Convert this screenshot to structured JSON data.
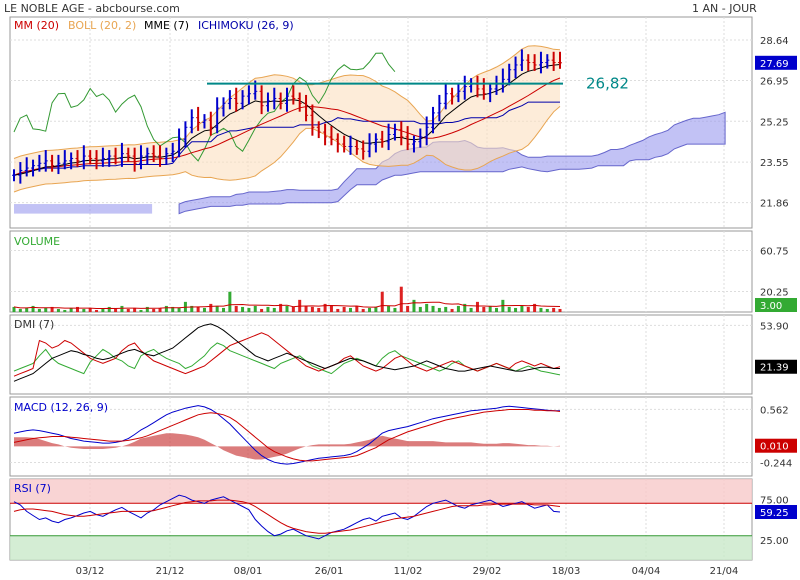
{
  "header": {
    "left_title": "LE NOBLE AGE - abcbourse.com",
    "right_title": "1 AN - JOUR"
  },
  "legend": {
    "mm": "MM (20)",
    "boll": "BOLL (20, 2)",
    "mme": "MME (7)",
    "ichimoku": "ICHIMOKU (26, 9)"
  },
  "colors": {
    "mm": "#cc0000",
    "boll": "#e8a552",
    "mme": "#000000",
    "ichimoku": "#0000aa",
    "cloud": "#9999ee",
    "volume_up": "#33aa33",
    "volume_down": "#dd2222",
    "dmi_plus": "#33aa33",
    "dmi_minus": "#cc0000",
    "adx": "#000000",
    "macd": "#0000cc",
    "signal": "#cc0000",
    "hist": "#cc4444",
    "rsi": "#0000cc",
    "rsi_ma": "#cc0000",
    "resistance": "#008888",
    "current_box": "#0000cc",
    "indicator_box": "#cc0000"
  },
  "annotation": {
    "resistance_label": "26,82",
    "resistance_value": 26.82
  },
  "x_axis": {
    "labels": [
      "03/12",
      "21/12",
      "08/01",
      "26/01",
      "11/02",
      "29/02",
      "18/03",
      "04/04",
      "21/04"
    ]
  },
  "panels": {
    "volume": {
      "title": "VOLUME",
      "ticks": [
        "60.75",
        "20.25"
      ],
      "current": "3.00"
    },
    "dmi": {
      "title": "DMI (7)",
      "ticks": [
        "53.90"
      ],
      "current": "21.39"
    },
    "macd": {
      "title": "MACD (12, 26, 9)",
      "ticks": [
        "0.562",
        "-0.244"
      ],
      "current": "0.010"
    },
    "rsi": {
      "title": "RSI (7)",
      "ticks": [
        "75.00",
        "25.00"
      ],
      "current": "59.25"
    }
  },
  "chart_data": {
    "type": "line",
    "price_axis": {
      "ticks": [
        "28.64",
        "26.95",
        "25.25",
        "23.55",
        "21.86"
      ],
      "tick_values": [
        28.64,
        26.95,
        25.25,
        23.55,
        21.86
      ],
      "current": "27.69",
      "current_value": 27.69
    },
    "closes": [
      23.0,
      23.2,
      23.3,
      23.4,
      23.5,
      23.6,
      23.4,
      23.5,
      23.6,
      23.7,
      23.6,
      23.8,
      23.7,
      23.6,
      23.7,
      23.8,
      23.7,
      23.9,
      23.8,
      23.5,
      23.8,
      23.9,
      23.8,
      23.7,
      23.9,
      24.0,
      24.5,
      25.0,
      25.4,
      25.2,
      25.3,
      25.0,
      25.8,
      26.0,
      26.2,
      26.0,
      26.3,
      26.4,
      26.5,
      25.9,
      26.1,
      26.2,
      26.0,
      26.3,
      26.2,
      26.0,
      25.5,
      25.0,
      24.8,
      24.6,
      24.5,
      24.3,
      24.2,
      24.2,
      24.1,
      24.0,
      24.3,
      24.5,
      24.4,
      24.7,
      24.9,
      24.6,
      24.3,
      24.4,
      24.6,
      25.0,
      25.6,
      26.0,
      26.4,
      26.3,
      26.5,
      26.7,
      26.8,
      26.6,
      26.4,
      26.6,
      26.8,
      27.0,
      27.4,
      27.6,
      27.8,
      27.7,
      27.6,
      27.7,
      27.8,
      27.7,
      27.69
    ],
    "resistance": 26.82,
    "volume": [
      5,
      3,
      4,
      6,
      3,
      4,
      5,
      3,
      2,
      4,
      5,
      3,
      4,
      2,
      3,
      5,
      4,
      6,
      3,
      4,
      2,
      5,
      3,
      4,
      6,
      5,
      4,
      10,
      6,
      5,
      4,
      8,
      6,
      4,
      20,
      6,
      5,
      4,
      6,
      3,
      5,
      4,
      8,
      6,
      5,
      12,
      6,
      5,
      4,
      8,
      6,
      3,
      5,
      4,
      6,
      3,
      4,
      5,
      20,
      6,
      4,
      25,
      6,
      12,
      5,
      8,
      6,
      4,
      5,
      3,
      6,
      8,
      4,
      10,
      5,
      6,
      4,
      12,
      5,
      4,
      6,
      5,
      8,
      4,
      3,
      4,
      3
    ],
    "dmi_plus": [
      18,
      20,
      22,
      24,
      30,
      35,
      28,
      24,
      22,
      20,
      18,
      16,
      25,
      30,
      35,
      32,
      28,
      26,
      22,
      20,
      30,
      33,
      35,
      31,
      28,
      26,
      24,
      20,
      22,
      26,
      30,
      36,
      40,
      38,
      34,
      32,
      30,
      28,
      26,
      24,
      22,
      20,
      24,
      26,
      28,
      30,
      26,
      22,
      20,
      18,
      16,
      20,
      24,
      26,
      28,
      26,
      24,
      22,
      28,
      32,
      34,
      30,
      28,
      26,
      24,
      22,
      20,
      18,
      20,
      24,
      26,
      22,
      20,
      18,
      20,
      22,
      24,
      22,
      20,
      18,
      20,
      22,
      20,
      18,
      17,
      16,
      15
    ],
    "dmi_minus": [
      14,
      16,
      18,
      20,
      42,
      40,
      36,
      38,
      42,
      40,
      36,
      32,
      28,
      26,
      24,
      26,
      28,
      34,
      38,
      40,
      34,
      30,
      26,
      24,
      22,
      20,
      18,
      16,
      18,
      20,
      22,
      26,
      30,
      34,
      38,
      40,
      42,
      44,
      46,
      48,
      46,
      42,
      38,
      34,
      30,
      26,
      22,
      20,
      18,
      20,
      22,
      24,
      28,
      30,
      26,
      22,
      20,
      18,
      20,
      24,
      28,
      30,
      26,
      22,
      20,
      18,
      20,
      22,
      24,
      26,
      24,
      22,
      20,
      18,
      20,
      22,
      24,
      22,
      20,
      24,
      26,
      24,
      22,
      24,
      22,
      20,
      21.39
    ],
    "adx": [
      10,
      12,
      14,
      16,
      20,
      24,
      28,
      30,
      32,
      34,
      33,
      31,
      30,
      28,
      27,
      28,
      30,
      32,
      34,
      35,
      33,
      31,
      30,
      32,
      34,
      36,
      40,
      44,
      48,
      52,
      54,
      55,
      53,
      50,
      46,
      42,
      38,
      34,
      30,
      28,
      26,
      28,
      30,
      32,
      30,
      28,
      26,
      24,
      22,
      20,
      22,
      24,
      26,
      28,
      27,
      26,
      24,
      22,
      21,
      20,
      19,
      20,
      21,
      22,
      24,
      26,
      24,
      22,
      20,
      19,
      18,
      18,
      19,
      20,
      21,
      22,
      21,
      20,
      19,
      18,
      18,
      19,
      20,
      21,
      21,
      20,
      20
    ],
    "macd": [
      0.2,
      0.22,
      0.24,
      0.25,
      0.24,
      0.22,
      0.2,
      0.18,
      0.15,
      0.12,
      0.1,
      0.08,
      0.07,
      0.06,
      0.05,
      0.05,
      0.06,
      0.08,
      0.12,
      0.18,
      0.25,
      0.3,
      0.36,
      0.42,
      0.48,
      0.52,
      0.55,
      0.58,
      0.6,
      0.62,
      0.6,
      0.56,
      0.5,
      0.42,
      0.34,
      0.24,
      0.14,
      0.04,
      -0.06,
      -0.14,
      -0.2,
      -0.24,
      -0.26,
      -0.27,
      -0.26,
      -0.24,
      -0.22,
      -0.2,
      -0.18,
      -0.17,
      -0.16,
      -0.15,
      -0.14,
      -0.12,
      -0.08,
      -0.02,
      0.04,
      0.12,
      0.2,
      0.24,
      0.26,
      0.28,
      0.3,
      0.33,
      0.36,
      0.39,
      0.42,
      0.44,
      0.46,
      0.48,
      0.5,
      0.52,
      0.54,
      0.55,
      0.56,
      0.57,
      0.58,
      0.6,
      0.61,
      0.6,
      0.59,
      0.58,
      0.57,
      0.56,
      0.55,
      0.54,
      0.54
    ],
    "macd_signal": [
      0.06,
      0.08,
      0.1,
      0.12,
      0.13,
      0.14,
      0.15,
      0.15,
      0.15,
      0.14,
      0.13,
      0.12,
      0.11,
      0.1,
      0.09,
      0.08,
      0.08,
      0.08,
      0.09,
      0.11,
      0.13,
      0.16,
      0.2,
      0.24,
      0.28,
      0.32,
      0.36,
      0.4,
      0.44,
      0.48,
      0.5,
      0.51,
      0.5,
      0.48,
      0.44,
      0.38,
      0.3,
      0.22,
      0.14,
      0.06,
      -0.02,
      -0.08,
      -0.12,
      -0.16,
      -0.19,
      -0.21,
      -0.22,
      -0.22,
      -0.21,
      -0.2,
      -0.19,
      -0.18,
      -0.17,
      -0.16,
      -0.14,
      -0.1,
      -0.06,
      -0.02,
      0.04,
      0.1,
      0.14,
      0.18,
      0.22,
      0.25,
      0.28,
      0.31,
      0.34,
      0.37,
      0.4,
      0.42,
      0.44,
      0.46,
      0.48,
      0.5,
      0.52,
      0.53,
      0.54,
      0.55,
      0.56,
      0.56,
      0.56,
      0.56,
      0.55,
      0.55,
      0.54,
      0.54,
      0.53
    ],
    "rsi": [
      72,
      68,
      60,
      55,
      50,
      52,
      48,
      46,
      50,
      52,
      55,
      58,
      60,
      56,
      54,
      58,
      62,
      65,
      60,
      56,
      52,
      58,
      62,
      68,
      72,
      76,
      80,
      78,
      74,
      72,
      70,
      74,
      76,
      78,
      74,
      70,
      66,
      62,
      50,
      42,
      35,
      30,
      32,
      36,
      38,
      34,
      30,
      28,
      26,
      30,
      34,
      36,
      38,
      42,
      46,
      50,
      52,
      48,
      54,
      56,
      58,
      52,
      50,
      54,
      60,
      66,
      70,
      72,
      74,
      70,
      66,
      64,
      68,
      70,
      72,
      74,
      70,
      66,
      68,
      70,
      72,
      68,
      64,
      66,
      68,
      60,
      59.25
    ],
    "rsi_ma": [
      60,
      62,
      63,
      63,
      62,
      61,
      60,
      58,
      56,
      55,
      54,
      54,
      55,
      56,
      57,
      58,
      59,
      60,
      60,
      60,
      60,
      60,
      61,
      63,
      65,
      67,
      69,
      71,
      72,
      73,
      73,
      73,
      74,
      74,
      74,
      73,
      72,
      70,
      66,
      61,
      56,
      51,
      46,
      42,
      39,
      37,
      35,
      34,
      33,
      33,
      34,
      35,
      36,
      37,
      39,
      41,
      43,
      45,
      47,
      49,
      51,
      52,
      53,
      54,
      56,
      58,
      60,
      62,
      64,
      66,
      67,
      67,
      67,
      67,
      68,
      68,
      69,
      69,
      69,
      69,
      69,
      69,
      68,
      68,
      68,
      67,
      66
    ]
  }
}
